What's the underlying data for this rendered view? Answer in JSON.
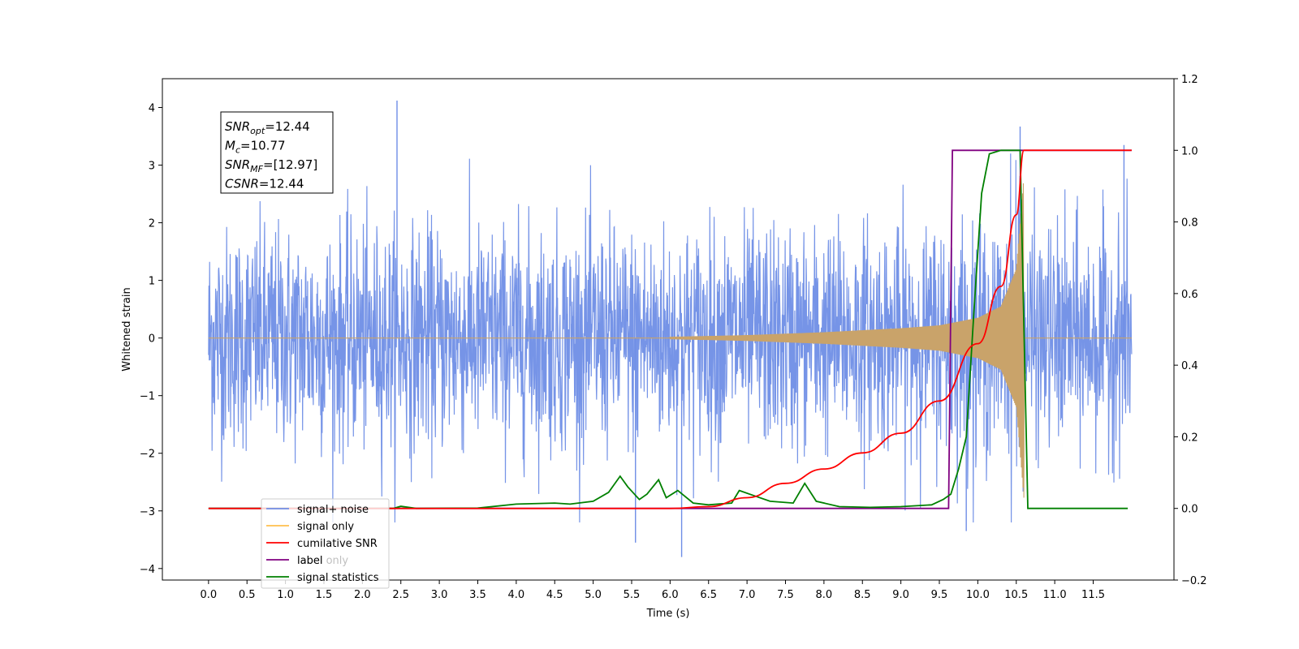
{
  "chart_data": {
    "type": "line",
    "title": "",
    "xlabel": "Time (s)",
    "ylabel": "Whitened strain",
    "xlim": [
      -0.6,
      12.55
    ],
    "ylim": [
      -4.2,
      4.5
    ],
    "y2lim": [
      -0.2,
      1.2
    ],
    "grid": false,
    "legend_position": "bottom-left",
    "x_ticks": [
      "0.0",
      "0.5",
      "1.0",
      "1.5",
      "2.0",
      "2.5",
      "3.0",
      "3.5",
      "4.0",
      "4.5",
      "5.0",
      "5.5",
      "6.0",
      "6.5",
      "7.0",
      "7.5",
      "8.0",
      "8.5",
      "9.0",
      "9.5",
      "10.0",
      "10.5",
      "11.0",
      "11.5"
    ],
    "y_ticks": [
      "4",
      "3",
      "2",
      "1",
      "0",
      "−1",
      "−2",
      "−3",
      "−4"
    ],
    "y2_ticks": [
      "1.2",
      "1.0",
      "0.8",
      "0.6",
      "0.4",
      "0.2",
      "0.0",
      "−0.2"
    ],
    "annotations": [
      {
        "sym": "SNR",
        "sub": "opt",
        "rest": "=12.44"
      },
      {
        "sym": "M",
        "sub": "c",
        "rest": "=10.77"
      },
      {
        "sym": "SNR",
        "sub": "MF",
        "rest": "=[12.97]"
      },
      {
        "sym": "CSNR",
        "sub": "",
        "rest": "=12.44"
      }
    ],
    "legend": [
      {
        "label": "signal+ noise",
        "color": "#6f8ee6"
      },
      {
        "label": "signal only",
        "color": "#ffbf4d"
      },
      {
        "label": "cumilative SNR",
        "color": "#ff0000"
      },
      {
        "label": "label",
        "color": "#800080"
      },
      {
        "label": "signal statistics",
        "color": "#008000"
      }
    ],
    "overlap_text": "label only",
    "series": [
      {
        "name": "signal+ noise",
        "axis": "left",
        "color": "#6f8ee6",
        "x_range": [
          0.0,
          12.0
        ],
        "noise_band": [
          -1.4,
          1.5
        ],
        "extremes": [
          [
            2.45,
            4.12
          ],
          [
            6.15,
            -3.8
          ],
          [
            10.55,
            3.67
          ],
          [
            11.9,
            3.35
          ],
          [
            5.55,
            -3.55
          ],
          [
            9.85,
            -3.35
          ]
        ]
      },
      {
        "name": "signal only",
        "axis": "left",
        "color": "#c9a36a",
        "x_range": [
          0.0,
          12.0
        ],
        "chirp_end": 10.6,
        "envelope": [
          [
            6.0,
            0.02
          ],
          [
            7.0,
            0.05
          ],
          [
            8.0,
            0.1
          ],
          [
            9.0,
            0.17
          ],
          [
            9.5,
            0.22
          ],
          [
            10.0,
            0.35
          ],
          [
            10.3,
            0.55
          ],
          [
            10.5,
            1.2
          ],
          [
            10.6,
            2.8
          ]
        ]
      },
      {
        "name": "cumilative SNR",
        "axis": "right",
        "color": "#ff0000",
        "points": [
          [
            0.0,
            0.0
          ],
          [
            6.0,
            0.0
          ],
          [
            6.5,
            0.005
          ],
          [
            7.0,
            0.03
          ],
          [
            7.5,
            0.07
          ],
          [
            8.0,
            0.11
          ],
          [
            8.5,
            0.155
          ],
          [
            9.0,
            0.21
          ],
          [
            9.5,
            0.3
          ],
          [
            10.0,
            0.46
          ],
          [
            10.3,
            0.62
          ],
          [
            10.5,
            0.82
          ],
          [
            10.6,
            1.0
          ],
          [
            12.0,
            1.0
          ]
        ]
      },
      {
        "name": "label",
        "axis": "right",
        "color": "#800080",
        "points": [
          [
            0.0,
            0.0
          ],
          [
            9.62,
            0.0
          ],
          [
            9.67,
            1.0
          ],
          [
            10.58,
            1.0
          ],
          [
            10.6,
            1.0
          ],
          [
            12.0,
            1.0
          ]
        ]
      },
      {
        "name": "signal statistics",
        "axis": "right",
        "color": "#008000",
        "points": [
          [
            0.0,
            0.0
          ],
          [
            2.0,
            0.0
          ],
          [
            2.4,
            0.0
          ],
          [
            2.5,
            0.006
          ],
          [
            2.7,
            0.0
          ],
          [
            3.5,
            0.001
          ],
          [
            4.0,
            0.012
          ],
          [
            4.5,
            0.015
          ],
          [
            4.7,
            0.012
          ],
          [
            5.0,
            0.02
          ],
          [
            5.2,
            0.045
          ],
          [
            5.35,
            0.09
          ],
          [
            5.45,
            0.06
          ],
          [
            5.6,
            0.025
          ],
          [
            5.7,
            0.04
          ],
          [
            5.85,
            0.08
          ],
          [
            5.95,
            0.03
          ],
          [
            6.1,
            0.05
          ],
          [
            6.3,
            0.015
          ],
          [
            6.5,
            0.01
          ],
          [
            6.8,
            0.015
          ],
          [
            6.9,
            0.05
          ],
          [
            7.1,
            0.035
          ],
          [
            7.3,
            0.02
          ],
          [
            7.6,
            0.015
          ],
          [
            7.75,
            0.07
          ],
          [
            7.9,
            0.02
          ],
          [
            8.2,
            0.005
          ],
          [
            8.6,
            0.003
          ],
          [
            9.0,
            0.005
          ],
          [
            9.4,
            0.01
          ],
          [
            9.55,
            0.025
          ],
          [
            9.65,
            0.04
          ],
          [
            9.75,
            0.11
          ],
          [
            9.85,
            0.2
          ],
          [
            9.95,
            0.55
          ],
          [
            10.05,
            0.88
          ],
          [
            10.15,
            0.99
          ],
          [
            10.3,
            1.0
          ],
          [
            10.55,
            1.0
          ],
          [
            10.65,
            0.0
          ],
          [
            11.95,
            0.0
          ]
        ]
      }
    ]
  }
}
